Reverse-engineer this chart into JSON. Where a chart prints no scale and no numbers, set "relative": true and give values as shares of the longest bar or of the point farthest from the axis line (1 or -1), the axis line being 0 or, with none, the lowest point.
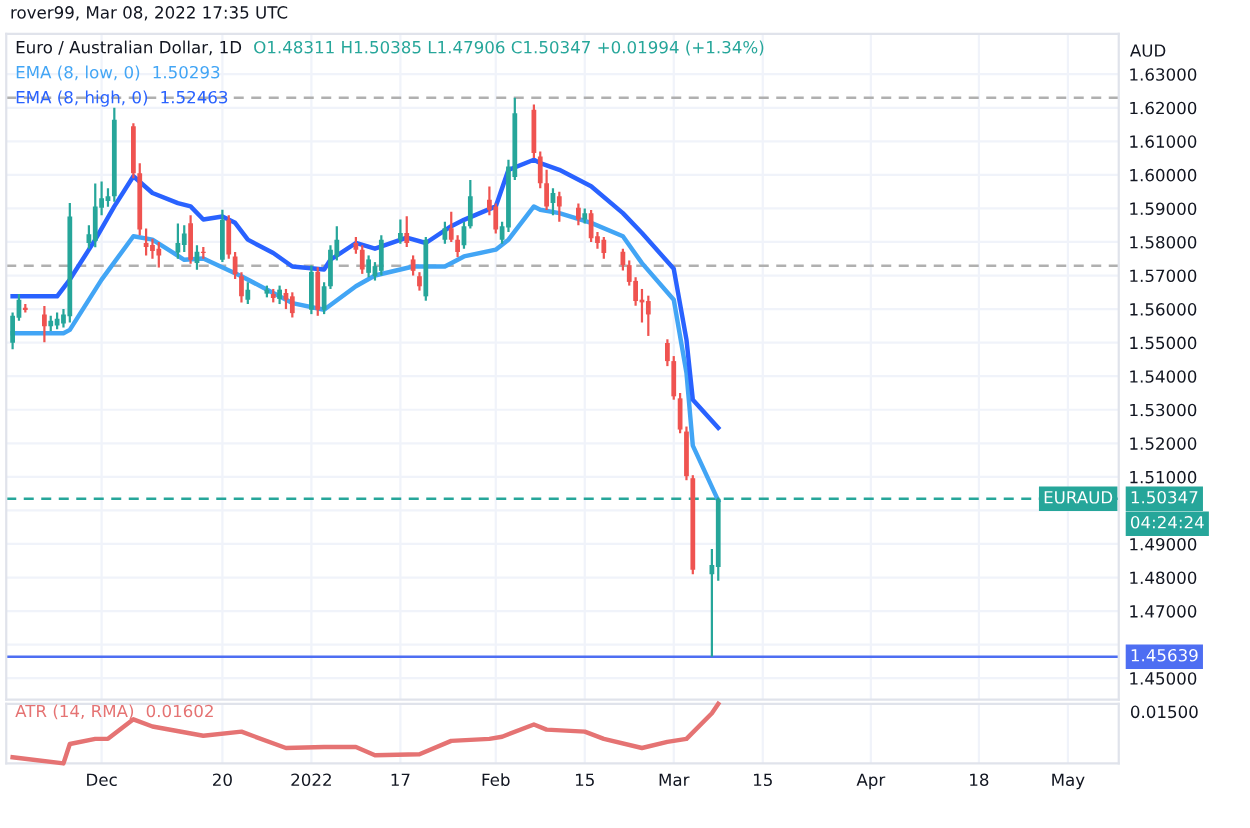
{
  "chart_data": [
    {
      "type": "candlestick",
      "title": "Euro / Australian Dollar, 1D",
      "annotations": [
        "rover99, Mar 08, 2022 17:35 UTC",
        "O1.48311 H1.50385 L1.47906 C1.50347 +0.01994 (+1.34%)",
        "AUD",
        "EURAUD",
        "04:24:24",
        "1.50293",
        "1.52463"
      ],
      "x": [
        "2021-11-17",
        "2021-11-18",
        "2021-11-19",
        "2021-11-22",
        "2021-11-23",
        "2021-11-24",
        "2021-11-25",
        "2021-11-26",
        "2021-11-29",
        "2021-11-30",
        "2021-12-01",
        "2021-12-02",
        "2021-12-03",
        "2021-12-06",
        "2021-12-07",
        "2021-12-08",
        "2021-12-09",
        "2021-12-10",
        "2021-12-13",
        "2021-12-14",
        "2021-12-15",
        "2021-12-16",
        "2021-12-17",
        "2021-12-20",
        "2021-12-21",
        "2021-12-22",
        "2021-12-23",
        "2021-12-24",
        "2021-12-27",
        "2021-12-28",
        "2021-12-29",
        "2021-12-30",
        "2021-12-31",
        "2022-01-03",
        "2022-01-04",
        "2022-01-05",
        "2022-01-06",
        "2022-01-07",
        "2022-01-10",
        "2022-01-11",
        "2022-01-12",
        "2022-01-13",
        "2022-01-14",
        "2022-01-17",
        "2022-01-18",
        "2022-01-19",
        "2022-01-20",
        "2022-01-21",
        "2022-01-24",
        "2022-01-25",
        "2022-01-26",
        "2022-01-27",
        "2022-01-28",
        "2022-01-31",
        "2022-02-01",
        "2022-02-02",
        "2022-02-03",
        "2022-02-04",
        "2022-02-07",
        "2022-02-08",
        "2022-02-09",
        "2022-02-10",
        "2022-02-11",
        "2022-02-14",
        "2022-02-15",
        "2022-02-16",
        "2022-02-17",
        "2022-02-18",
        "2022-02-21",
        "2022-02-22",
        "2022-02-23",
        "2022-02-24",
        "2022-02-25",
        "2022-02-28",
        "2022-03-01",
        "2022-03-02",
        "2022-03-03",
        "2022-03-04",
        "2022-03-07",
        "2022-03-08"
      ],
      "ohlc": [
        [
          1.55,
          1.559,
          1.548,
          1.558
        ],
        [
          1.5574,
          1.5645,
          1.5565,
          1.5628
        ],
        [
          1.5604,
          1.5615,
          1.559,
          1.5597
        ],
        [
          1.5584,
          1.5609,
          1.5501,
          1.5549
        ],
        [
          1.5549,
          1.558,
          1.5535,
          1.5565
        ],
        [
          1.5551,
          1.559,
          1.554,
          1.5571
        ],
        [
          1.5557,
          1.56,
          1.5545,
          1.5584
        ],
        [
          1.5579,
          1.5916,
          1.556,
          1.5876
        ],
        [
          1.5797,
          1.585,
          1.578,
          1.5823
        ],
        [
          1.5803,
          1.5974,
          1.5784,
          1.5906
        ],
        [
          1.5902,
          1.598,
          1.588,
          1.593
        ],
        [
          1.5922,
          1.596,
          1.5905,
          1.5936
        ],
        [
          1.5936,
          1.62,
          1.592,
          1.6164
        ],
        [
          1.6145,
          1.6154,
          1.599,
          1.6005
        ],
        [
          1.6005,
          1.6035,
          1.582,
          1.5837
        ],
        [
          1.5797,
          1.584,
          1.576,
          1.5785
        ],
        [
          1.5791,
          1.581,
          1.575,
          1.5773
        ],
        [
          1.578,
          1.58,
          1.5724,
          1.576
        ],
        [
          1.5769,
          1.5855,
          1.575,
          1.5797
        ],
        [
          1.5791,
          1.585,
          1.577,
          1.5825
        ],
        [
          1.5856,
          1.588,
          1.5735,
          1.5747
        ],
        [
          1.5737,
          1.579,
          1.5717,
          1.5771
        ],
        [
          1.5771,
          1.5785,
          1.575,
          1.5767
        ],
        [
          1.5747,
          1.5896,
          1.574,
          1.5866
        ],
        [
          1.5866,
          1.588,
          1.575,
          1.5763
        ],
        [
          1.5757,
          1.577,
          1.569,
          1.5704
        ],
        [
          1.5698,
          1.571,
          1.562,
          1.5638
        ],
        [
          1.5628,
          1.568,
          1.5615,
          1.5658
        ],
        [
          1.5646,
          1.567,
          1.5635,
          1.5658
        ],
        [
          1.5645,
          1.566,
          1.562,
          1.5633
        ],
        [
          1.563,
          1.567,
          1.5615,
          1.5658
        ],
        [
          1.5648,
          1.566,
          1.56,
          1.5628
        ],
        [
          1.5638,
          1.565,
          1.5575,
          1.5588
        ],
        [
          1.5598,
          1.573,
          1.5585,
          1.5711
        ],
        [
          1.5711,
          1.5725,
          1.558,
          1.5598
        ],
        [
          1.5598,
          1.568,
          1.5585,
          1.5668
        ],
        [
          1.5668,
          1.579,
          1.566,
          1.5777
        ],
        [
          1.5757,
          1.5847,
          1.5745,
          1.5807
        ],
        [
          1.5797,
          1.5815,
          1.5765,
          1.5777
        ],
        [
          1.5777,
          1.579,
          1.5705,
          1.5718
        ],
        [
          1.5708,
          1.576,
          1.5695,
          1.5748
        ],
        [
          1.5698,
          1.574,
          1.5685,
          1.5728
        ],
        [
          1.5714,
          1.582,
          1.57,
          1.5807
        ],
        [
          1.5807,
          1.5867,
          1.5795,
          1.5827
        ],
        [
          1.5827,
          1.5877,
          1.5785,
          1.5797
        ],
        [
          1.5748,
          1.576,
          1.57,
          1.5714
        ],
        [
          1.5698,
          1.571,
          1.5655,
          1.5668
        ],
        [
          1.5638,
          1.5815,
          1.5625,
          1.5807
        ],
        [
          1.5807,
          1.586,
          1.5795,
          1.5841
        ],
        [
          1.5841,
          1.589,
          1.58,
          1.5807
        ],
        [
          1.5807,
          1.582,
          1.5755,
          1.577
        ],
        [
          1.579,
          1.586,
          1.578,
          1.5847
        ],
        [
          1.5847,
          1.5985,
          1.584,
          1.5936
        ],
        [
          1.5926,
          1.5965,
          1.588,
          1.5896
        ],
        [
          1.5906,
          1.5915,
          1.5825,
          1.5837
        ],
        [
          1.5807,
          1.586,
          1.5795,
          1.5847
        ],
        [
          1.5843,
          1.6045,
          1.583,
          1.6025
        ],
        [
          1.5994,
          1.623,
          1.5985,
          1.6184
        ],
        [
          1.6194,
          1.621,
          1.605,
          1.6065
        ],
        [
          1.6055,
          1.607,
          1.596,
          1.5975
        ],
        [
          1.5975,
          1.6015,
          1.5895,
          1.5906
        ],
        [
          1.5916,
          1.596,
          1.588,
          1.5946
        ],
        [
          1.5936,
          1.595,
          1.586,
          1.5906
        ],
        [
          1.5902,
          1.5915,
          1.585,
          1.5867
        ],
        [
          1.5867,
          1.59,
          1.5855,
          1.5886
        ],
        [
          1.5886,
          1.5895,
          1.58,
          1.5811
        ],
        [
          1.5817,
          1.583,
          1.578,
          1.5797
        ],
        [
          1.5807,
          1.5815,
          1.575,
          1.5767
        ],
        [
          1.5771,
          1.578,
          1.5715,
          1.5731
        ],
        [
          1.5731,
          1.5745,
          1.567,
          1.5681
        ],
        [
          1.5684,
          1.5695,
          1.561,
          1.5624
        ],
        [
          1.5628,
          1.566,
          1.556,
          1.562
        ],
        [
          1.5624,
          1.564,
          1.552,
          1.5584
        ],
        [
          1.5499,
          1.551,
          1.543,
          1.5445
        ],
        [
          1.5445,
          1.546,
          1.533,
          1.534
        ],
        [
          1.5334,
          1.535,
          1.523,
          1.5241
        ],
        [
          1.5235,
          1.525,
          1.509,
          1.5102
        ],
        [
          1.5096,
          1.5105,
          1.481,
          1.4823
        ],
        [
          1.481,
          1.4885,
          1.45639,
          1.4837
        ],
        [
          1.48311,
          1.50385,
          1.47906,
          1.50347
        ]
      ],
      "colors": [
        "#26a69a",
        "#26a69a",
        "#ef5350",
        "#ef5350",
        "#26a69a",
        "#26a69a",
        "#26a69a",
        "#26a69a",
        "#26a69a",
        "#26a69a",
        "#26a69a",
        "#26a69a",
        "#26a69a",
        "#ef5350",
        "#ef5350",
        "#ef5350",
        "#ef5350",
        "#ef5350",
        "#26a69a",
        "#26a69a",
        "#ef5350",
        "#26a69a",
        "#ef5350",
        "#26a69a",
        "#ef5350",
        "#ef5350",
        "#ef5350",
        "#26a69a",
        "#26a69a",
        "#ef5350",
        "#26a69a",
        "#ef5350",
        "#ef5350",
        "#26a69a",
        "#ef5350",
        "#26a69a",
        "#26a69a",
        "#26a69a",
        "#ef5350",
        "#ef5350",
        "#26a69a",
        "#26a69a",
        "#26a69a",
        "#26a69a",
        "#ef5350",
        "#ef5350",
        "#ef5350",
        "#26a69a",
        "#26a69a",
        "#ef5350",
        "#ef5350",
        "#26a69a",
        "#26a69a",
        "#ef5350",
        "#ef5350",
        "#26a69a",
        "#26a69a",
        "#26a69a",
        "#ef5350",
        "#ef5350",
        "#ef5350",
        "#26a69a",
        "#ef5350",
        "#ef5350",
        "#26a69a",
        "#ef5350",
        "#ef5350",
        "#ef5350",
        "#ef5350",
        "#ef5350",
        "#ef5350",
        "#ef5350",
        "#ef5350",
        "#ef5350",
        "#ef5350",
        "#ef5350",
        "#ef5350",
        "#ef5350",
        "#26a69a",
        "#26a69a"
      ],
      "series": [
        {
          "name": "EMA (8, low, 0)",
          "type": "line",
          "color": "#42a5f5",
          "x": [
            "2021-11-17",
            "2021-11-25",
            "2021-11-26",
            "2021-12-01",
            "2021-12-06",
            "2021-12-09",
            "2021-12-14",
            "2021-12-17",
            "2021-12-23",
            "2021-12-28",
            "2021-12-31",
            "2022-01-05",
            "2022-01-10",
            "2022-01-13",
            "2022-01-19",
            "2022-01-24",
            "2022-01-27",
            "2022-02-01",
            "2022-02-03",
            "2022-02-07",
            "2022-02-08",
            "2022-02-11",
            "2022-02-16",
            "2022-02-21",
            "2022-02-24",
            "2022-03-01",
            "2022-03-03",
            "2022-03-04",
            "2022-03-08"
          ],
          "values": [
            1.5528,
            1.5528,
            1.5538,
            1.5688,
            1.5817,
            1.5807,
            1.5747,
            1.5751,
            1.5698,
            1.5648,
            1.5618,
            1.5598,
            1.5668,
            1.57,
            1.5727,
            1.5727,
            1.5757,
            1.5777,
            1.5807,
            1.5906,
            1.5896,
            1.5886,
            1.5857,
            1.5817,
            1.5737,
            1.5628,
            1.541,
            1.5193,
            1.50293
          ]
        },
        {
          "name": "EMA (8, high, 0)",
          "type": "line",
          "color": "#2962ff",
          "x": [
            "2021-11-17",
            "2021-11-24",
            "2021-11-26",
            "2021-11-30",
            "2021-12-03",
            "2021-12-06",
            "2021-12-09",
            "2021-12-13",
            "2021-12-15",
            "2021-12-17",
            "2021-12-20",
            "2021-12-22",
            "2021-12-24",
            "2021-12-28",
            "2021-12-31",
            "2022-01-05",
            "2022-01-06",
            "2022-01-10",
            "2022-01-13",
            "2022-01-18",
            "2022-01-21",
            "2022-01-25",
            "2022-01-27",
            "2022-02-01",
            "2022-02-03",
            "2022-02-07",
            "2022-02-08",
            "2022-02-11",
            "2022-02-16",
            "2022-02-21",
            "2022-02-24",
            "2022-03-01",
            "2022-03-03",
            "2022-03-04",
            "2022-03-08"
          ],
          "values": [
            1.5638,
            1.5638,
            1.5688,
            1.5807,
            1.5906,
            1.5996,
            1.5946,
            1.5916,
            1.5906,
            1.5867,
            1.5876,
            1.5857,
            1.5807,
            1.5767,
            1.5727,
            1.5718,
            1.5747,
            1.5797,
            1.578,
            1.5813,
            1.5797,
            1.5847,
            1.5866,
            1.5906,
            1.6015,
            1.6045,
            1.6035,
            1.6015,
            1.5966,
            1.5886,
            1.5827,
            1.572,
            1.5509,
            1.533,
            1.52463
          ]
        }
      ],
      "ref_lines": [
        {
          "axis": "y",
          "value": 1.45639,
          "label": "1.45639",
          "color": "#4e6ef2",
          "line_style": "solid"
        },
        {
          "axis": "y",
          "value": 1.50347,
          "label": "1.50347",
          "color": "#26a69a",
          "line_style": "dashed"
        },
        {
          "axis": "y",
          "value": 1.623,
          "color": "#b0b0b0",
          "line_style": "dashed"
        },
        {
          "axis": "y",
          "value": 1.5729,
          "color": "#b0b0b0",
          "line_style": "dashed"
        }
      ],
      "xlim": [
        "2021-11-16",
        "2022-05-10"
      ],
      "xticks": [
        {
          "value": "2021-12-01",
          "label": null
        },
        {
          "value": "2021-12-20",
          "label": null
        },
        {
          "value": "2022-01-03",
          "label": null
        },
        {
          "value": "2022-01-17",
          "label": null
        },
        {
          "value": "2022-02-01",
          "label": null
        },
        {
          "value": "2022-02-15",
          "label": null
        },
        {
          "value": "2022-03-01",
          "label": null
        },
        {
          "value": "2022-03-15",
          "label": null
        },
        {
          "value": "2022-04-01",
          "label": null
        },
        {
          "value": "2022-04-18",
          "label": null
        },
        {
          "value": "2022-05-02",
          "label": null
        }
      ],
      "ylim": [
        1.4436,
        1.642
      ],
      "yticks": [
        {
          "value": 1.45,
          "label": "1.45000"
        },
        {
          "value": 1.46,
          "label": null
        },
        {
          "value": 1.47,
          "label": "1.47000"
        },
        {
          "value": 1.48,
          "label": "1.48000"
        },
        {
          "value": 1.49,
          "label": "1.49000"
        },
        {
          "value": 1.5,
          "label": null
        },
        {
          "value": 1.51,
          "label": "1.51000"
        },
        {
          "value": 1.52,
          "label": "1.52000"
        },
        {
          "value": 1.53,
          "label": "1.53000"
        },
        {
          "value": 1.54,
          "label": "1.54000"
        },
        {
          "value": 1.55,
          "label": "1.55000"
        },
        {
          "value": 1.56,
          "label": "1.56000"
        },
        {
          "value": 1.57,
          "label": "1.57000"
        },
        {
          "value": 1.58,
          "label": "1.58000"
        },
        {
          "value": 1.59,
          "label": "1.59000"
        },
        {
          "value": 1.6,
          "label": "1.60000"
        },
        {
          "value": 1.61,
          "label": "1.61000"
        },
        {
          "value": 1.62,
          "label": "1.62000"
        },
        {
          "value": 1.63,
          "label": "1.63000"
        }
      ],
      "grid": true,
      "legend": "top left",
      "tick_labels": "y"
    },
    {
      "type": "line",
      "x": [
        "2021-11-17",
        "2021-11-25",
        "2021-11-26",
        "2021-11-30",
        "2021-12-02",
        "2021-12-06",
        "2021-12-09",
        "2021-12-17",
        "2021-12-23",
        "2021-12-30",
        "2022-01-05",
        "2022-01-10",
        "2022-01-13",
        "2022-01-20",
        "2022-01-25",
        "2022-01-31",
        "2022-02-02",
        "2022-02-07",
        "2022-02-09",
        "2022-02-15",
        "2022-02-18",
        "2022-02-24",
        "2022-02-28",
        "2022-03-03",
        "2022-03-07",
        "2022-03-08"
      ],
      "relative": true,
      "annotations": [
        "0.01500",
        "0.01602"
      ],
      "series": [
        {
          "name": "ATR (14, RMA)",
          "color": "#e57373",
          "values": [
            0.103,
            0,
            0.326,
            0.412,
            0.412,
            0.739,
            0.619,
            0.464,
            0.533,
            0.258,
            0.275,
            0.275,
            0.137,
            0.155,
            0.378,
            0.412,
            0.447,
            0.653,
            0.567,
            0.533,
            0.412,
            0.258,
            0.361,
            0.412,
            0.842,
            1
          ]
        }
      ],
      "xlim": [
        "2021-11-16",
        "2022-05-10"
      ],
      "xticks": [
        {
          "value": "2021-12-01",
          "label": "Dec"
        },
        {
          "value": "2021-12-20",
          "label": "20"
        },
        {
          "value": "2022-01-03",
          "label": "2022"
        },
        {
          "value": "2022-01-17",
          "label": "17"
        },
        {
          "value": "2022-02-01",
          "label": "Feb"
        },
        {
          "value": "2022-02-15",
          "label": "15"
        },
        {
          "value": "2022-03-01",
          "label": "Mar"
        },
        {
          "value": "2022-03-15",
          "label": "15"
        },
        {
          "value": "2022-04-01",
          "label": "Apr"
        },
        {
          "value": "2022-04-18",
          "label": "18"
        },
        {
          "value": "2022-05-02",
          "label": "May"
        }
      ],
      "grid": true,
      "legend": "top left"
    }
  ]
}
